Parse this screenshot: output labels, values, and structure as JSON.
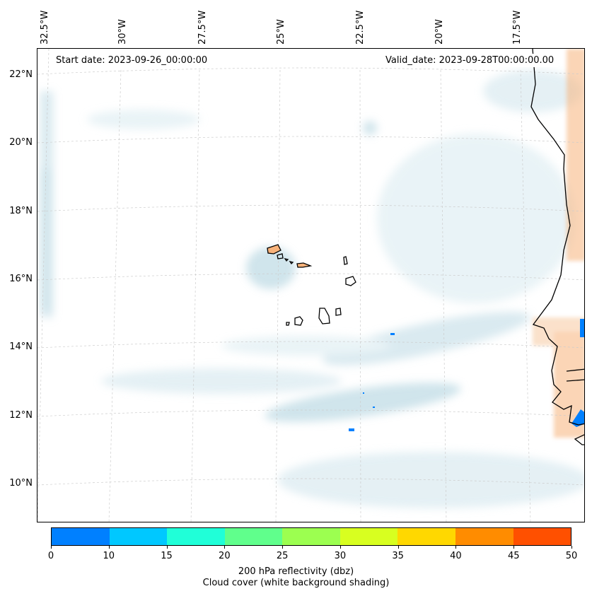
{
  "map": {
    "start_date_text": "Start date: 2023-09-26_00:00:00",
    "valid_date_text": "Valid_date: 2023-09-28T00:00:00.00",
    "lon_labels": [
      "32.5°W",
      "30°W",
      "27.5°W",
      "25°W",
      "22.5°W",
      "20°W",
      "17.5°W"
    ],
    "lat_labels": [
      "22°N",
      "20°N",
      "18°N",
      "16°N",
      "14°N",
      "12°N",
      "10°N"
    ],
    "gridlines": true,
    "coastline_color": "#000000",
    "cloud_shading_color": "#bcd9e4",
    "land_shading_color": "#f7b27a",
    "reflectivity_patch_color": "#0080ff"
  },
  "colorbar": {
    "ticks": [
      "0",
      "10",
      "15",
      "20",
      "25",
      "30",
      "35",
      "40",
      "45",
      "50"
    ],
    "colors": [
      "#0080ff",
      "#00c8ff",
      "#20ffd8",
      "#60ff8c",
      "#9cff50",
      "#d8ff20",
      "#ffd800",
      "#ff8c00",
      "#ff5000"
    ],
    "label_line1": "200 hPa reflectivity (dbz)",
    "label_line2": "Cloud cover (white background shading)"
  }
}
